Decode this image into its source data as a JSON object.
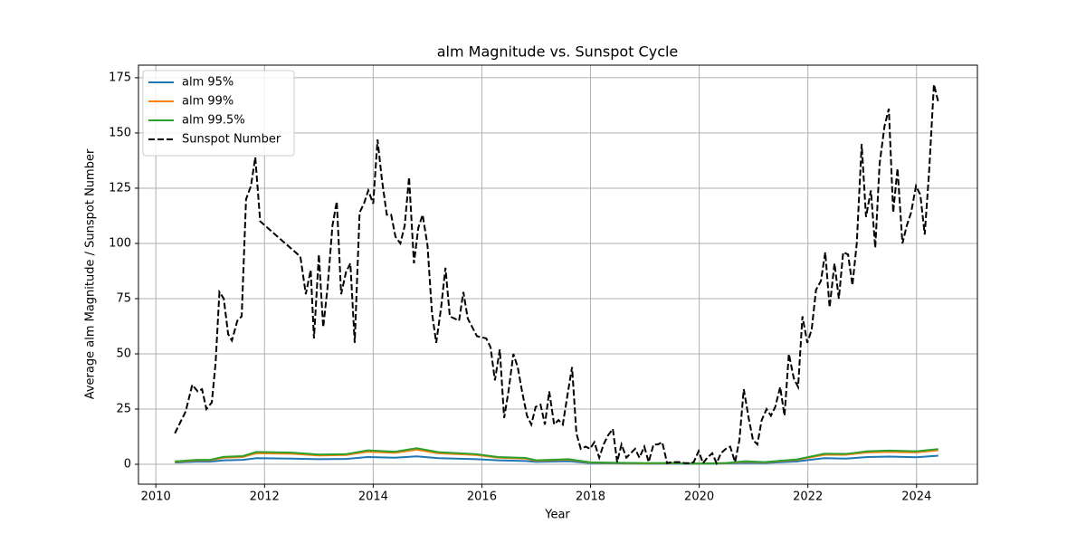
{
  "chart_data": {
    "type": "line",
    "title": "alm Magnitude vs. Sunspot Cycle",
    "xlabel": "Year",
    "ylabel": "Average alm Magnitude / Sunspot Number",
    "xlim": [
      2009.68,
      2025.12
    ],
    "ylim": [
      -9,
      180.7
    ],
    "xticks": [
      2010,
      2012,
      2014,
      2016,
      2018,
      2020,
      2022,
      2024
    ],
    "yticks": [
      0,
      25,
      50,
      75,
      100,
      125,
      150,
      175
    ],
    "grid": true,
    "legend": "upper left",
    "series": [
      {
        "name": "alm 95%",
        "color": "#1f77b4",
        "linestyle": "solid",
        "x": [
          2010.35,
          2010.75,
          2011.0,
          2011.25,
          2011.6,
          2011.85,
          2012.5,
          2013.0,
          2013.5,
          2013.9,
          2014.4,
          2014.8,
          2015.2,
          2015.9,
          2016.3,
          2016.8,
          2017.0,
          2017.6,
          2018.0,
          2018.5,
          2019.0,
          2019.5,
          2020.0,
          2020.5,
          2020.85,
          2021.2,
          2021.8,
          2022.3,
          2022.7,
          2023.1,
          2023.5,
          2024.0,
          2024.4
        ],
        "values": [
          0.8,
          1.2,
          1.2,
          1.8,
          2.0,
          2.8,
          2.6,
          2.3,
          2.4,
          3.3,
          3.0,
          3.6,
          2.8,
          2.3,
          1.8,
          1.5,
          1.1,
          1.4,
          0.5,
          0.4,
          0.3,
          0.3,
          0.2,
          0.4,
          0.7,
          0.6,
          1.3,
          2.8,
          2.6,
          3.3,
          3.5,
          3.2,
          3.9
        ]
      },
      {
        "name": "alm 99%",
        "color": "#ff7f0e",
        "linestyle": "solid",
        "x": [
          2010.35,
          2010.75,
          2011.0,
          2011.25,
          2011.6,
          2011.85,
          2012.5,
          2013.0,
          2013.5,
          2013.9,
          2014.4,
          2014.8,
          2015.2,
          2015.9,
          2016.3,
          2016.8,
          2017.0,
          2017.6,
          2018.0,
          2018.5,
          2019.0,
          2019.5,
          2020.0,
          2020.5,
          2020.85,
          2021.2,
          2021.8,
          2022.3,
          2022.7,
          2023.1,
          2023.5,
          2024.0,
          2024.4
        ],
        "values": [
          1.1,
          1.8,
          1.8,
          3.0,
          3.3,
          5.0,
          4.8,
          4.0,
          4.2,
          5.7,
          5.2,
          6.6,
          5.0,
          4.2,
          3.0,
          2.6,
          1.6,
          2.1,
          0.8,
          0.6,
          0.4,
          0.5,
          0.3,
          0.5,
          1.2,
          0.9,
          2.0,
          4.3,
          4.3,
          5.4,
          5.6,
          5.4,
          6.3
        ]
      },
      {
        "name": "alm 99.5%",
        "color": "#2ca02c",
        "linestyle": "solid",
        "x": [
          2010.35,
          2010.75,
          2011.0,
          2011.25,
          2011.6,
          2011.85,
          2012.5,
          2013.0,
          2013.5,
          2013.9,
          2014.4,
          2014.8,
          2015.2,
          2015.9,
          2016.3,
          2016.8,
          2017.0,
          2017.6,
          2018.0,
          2018.5,
          2019.0,
          2019.5,
          2020.0,
          2020.5,
          2020.85,
          2021.2,
          2021.8,
          2022.3,
          2022.7,
          2023.1,
          2023.5,
          2024.0,
          2024.4
        ],
        "values": [
          1.3,
          2.0,
          2.0,
          3.4,
          3.7,
          5.6,
          5.3,
          4.4,
          4.6,
          6.3,
          5.7,
          7.3,
          5.5,
          4.6,
          3.3,
          2.9,
          1.8,
          2.3,
          0.9,
          0.7,
          0.5,
          0.6,
          0.3,
          0.6,
          1.4,
          1.0,
          2.2,
          4.8,
          4.7,
          5.9,
          6.2,
          5.9,
          6.9
        ]
      },
      {
        "name": "Sunspot Number",
        "color": "#000000",
        "linestyle": "dashed",
        "x": [
          2010.35,
          2010.55,
          2010.67,
          2010.77,
          2010.85,
          2010.93,
          2011.03,
          2011.1,
          2011.17,
          2011.25,
          2011.33,
          2011.4,
          2011.5,
          2011.58,
          2011.66,
          2011.75,
          2011.83,
          2011.92,
          2012.66,
          2012.76,
          2012.85,
          2012.91,
          2013.0,
          2013.08,
          2013.16,
          2013.25,
          2013.33,
          2013.41,
          2013.5,
          2013.58,
          2013.66,
          2013.75,
          2013.83,
          2013.91,
          2014.0,
          2014.08,
          2014.16,
          2014.25,
          2014.33,
          2014.41,
          2014.5,
          2014.58,
          2014.66,
          2014.75,
          2014.83,
          2014.91,
          2015.0,
          2015.08,
          2015.16,
          2015.25,
          2015.33,
          2015.41,
          2015.58,
          2015.66,
          2015.74,
          2015.91,
          2016.08,
          2016.16,
          2016.24,
          2016.33,
          2016.41,
          2016.49,
          2016.58,
          2016.66,
          2016.74,
          2016.83,
          2016.91,
          2016.99,
          2017.08,
          2017.16,
          2017.24,
          2017.33,
          2017.41,
          2017.49,
          2017.58,
          2017.66,
          2017.74,
          2017.82,
          2017.91,
          2017.99,
          2018.07,
          2018.16,
          2018.24,
          2018.32,
          2018.41,
          2018.49,
          2018.57,
          2018.66,
          2018.74,
          2018.82,
          2018.9,
          2018.99,
          2019.07,
          2019.16,
          2019.24,
          2019.32,
          2019.41,
          2019.49,
          2019.57,
          2019.66,
          2019.74,
          2019.82,
          2019.9,
          2019.99,
          2020.07,
          2020.15,
          2020.24,
          2020.32,
          2020.4,
          2020.49,
          2020.57,
          2020.66,
          2020.74,
          2020.82,
          2020.91,
          2020.99,
          2021.07,
          2021.15,
          2021.24,
          2021.32,
          2021.4,
          2021.49,
          2021.57,
          2021.65,
          2021.74,
          2021.82,
          2021.9,
          2021.99,
          2022.07,
          2022.15,
          2022.24,
          2022.32,
          2022.4,
          2022.49,
          2022.57,
          2022.65,
          2022.74,
          2022.82,
          2022.9,
          2022.99,
          2023.07,
          2023.16,
          2023.24,
          2023.32,
          2023.41,
          2023.49,
          2023.57,
          2023.65,
          2023.74,
          2023.82,
          2023.9,
          2023.99,
          2024.07,
          2024.15,
          2024.23,
          2024.32,
          2024.4
        ],
        "values": [
          14,
          24,
          36,
          33,
          34,
          25,
          28,
          46,
          78,
          75,
          59,
          56,
          65,
          67,
          120,
          126,
          139,
          110,
          94,
          77,
          88,
          57,
          95,
          62,
          80,
          108,
          119,
          77,
          87,
          91,
          55,
          114,
          118,
          124,
          118,
          147,
          129,
          113,
          113,
          103,
          100,
          108,
          130,
          91,
          107,
          113,
          99,
          69,
          55,
          71,
          89,
          67,
          65,
          78,
          66,
          58,
          57,
          53,
          38,
          52,
          21,
          33,
          50,
          44,
          33,
          22,
          18,
          26,
          27,
          18,
          33,
          18,
          20,
          18,
          32,
          44,
          14,
          7,
          8,
          7,
          10,
          3,
          9,
          13,
          16,
          1,
          9,
          3,
          5,
          7,
          3,
          8,
          1,
          9,
          9,
          10,
          0.5,
          1,
          1,
          1,
          0.5,
          0.5,
          1,
          6,
          0.5,
          3,
          5,
          0.5,
          5,
          7,
          8,
          1,
          11,
          34,
          21,
          11,
          9,
          20,
          25,
          22,
          26,
          35,
          22,
          50,
          39,
          35,
          67,
          55,
          61,
          79,
          83,
          96,
          71,
          91,
          75,
          96,
          95,
          81,
          100,
          145,
          112,
          124,
          98,
          136,
          153,
          161,
          114,
          134,
          100,
          108,
          114,
          126,
          122,
          104,
          132,
          172,
          164
        ]
      }
    ]
  }
}
